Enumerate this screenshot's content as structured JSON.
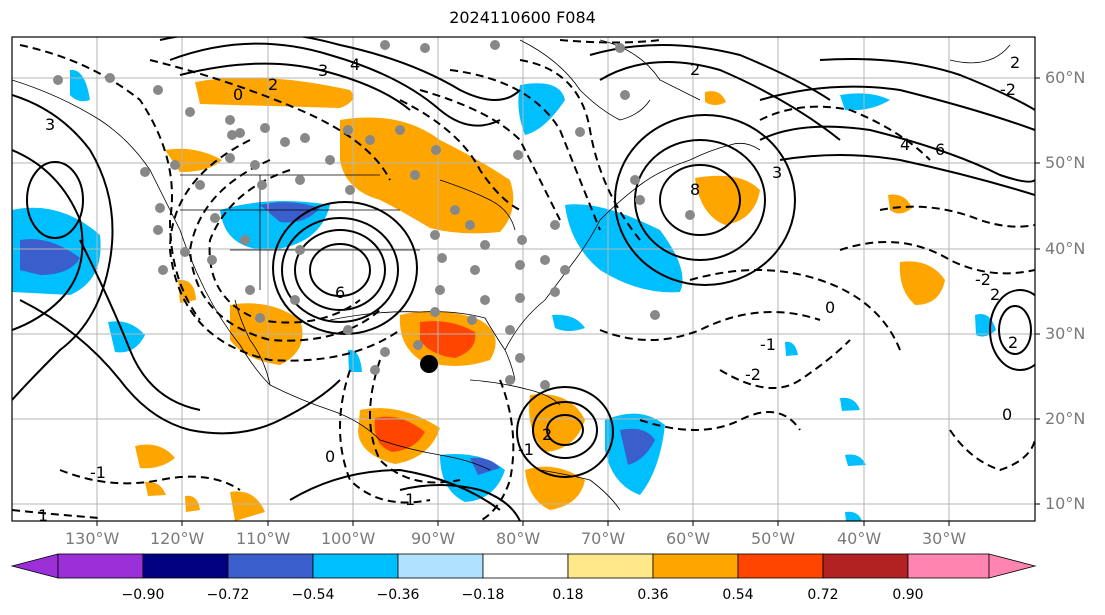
{
  "title": "2024110600 F084",
  "map": {
    "lat_labels": [
      "60°N",
      "50°N",
      "40°N",
      "30°N",
      "20°N",
      "10°N"
    ],
    "lon_labels": [
      "130°W",
      "120°W",
      "110°W",
      "100°W",
      "90°W",
      "80°W",
      "70°W",
      "60°W",
      "50°W",
      "40°W",
      "30°W"
    ],
    "contour_labels": [
      "0",
      "2",
      "3",
      "4",
      "6",
      "8",
      "4",
      "6",
      "0",
      "1",
      "-1",
      "2",
      "-2",
      "0",
      "1",
      "2",
      "3",
      "-1",
      "-1",
      "2",
      "2",
      "-2",
      "0",
      "3",
      "2",
      "-2"
    ]
  },
  "colorbar": {
    "tick_labels": [
      "−0.90",
      "−0.72",
      "−0.54",
      "−0.36",
      "−0.18",
      "0.18",
      "0.36",
      "0.54",
      "0.72",
      "0.90"
    ],
    "colors": [
      "#9b30d9",
      "#000080",
      "#3a5fcd",
      "#00bfff",
      "#b0e2ff",
      "#ffffff",
      "#ffe88a",
      "#ffa500",
      "#ff4500",
      "#b22222",
      "#ff85b0"
    ]
  }
}
